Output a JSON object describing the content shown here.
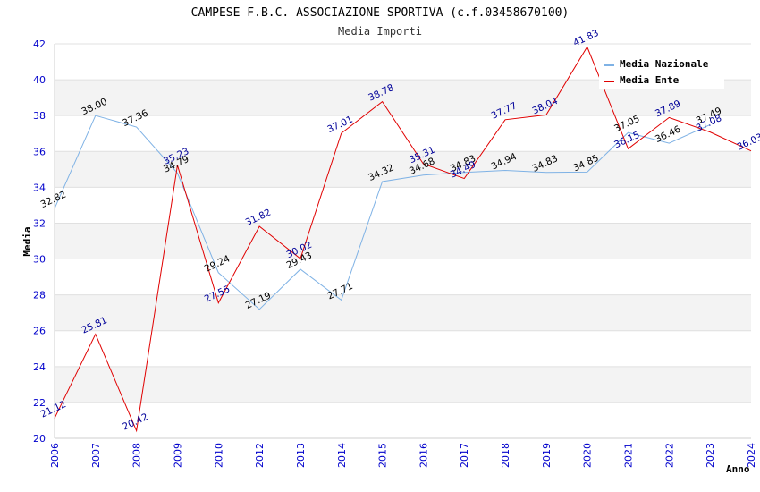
{
  "chart_data": {
    "type": "line",
    "title": "CAMPESE F.B.C. ASSOCIAZIONE SPORTIVA (c.f.03458670100)",
    "subtitle": "Media Importi",
    "xlabel": "Anno",
    "ylabel": "Media",
    "ylim": [
      20,
      42
    ],
    "ytick_step": 2,
    "grid": true,
    "legend_position": "top-right",
    "categories": [
      "2006",
      "2007",
      "2008",
      "2009",
      "2010",
      "2012",
      "2013",
      "2014",
      "2015",
      "2016",
      "2017",
      "2018",
      "2019",
      "2020",
      "2021",
      "2022",
      "2023",
      "2024"
    ],
    "series": [
      {
        "name": "Media Nazionale",
        "color": "#7fb2e5",
        "label_color": "#000000",
        "values": [
          32.82,
          38.0,
          37.36,
          34.79,
          29.24,
          27.19,
          29.43,
          27.71,
          34.32,
          34.68,
          34.83,
          34.94,
          34.83,
          34.85,
          37.05,
          36.46,
          37.49,
          null
        ],
        "labels": [
          "32.82",
          "38.00",
          "37.36",
          "34.79",
          "29.24",
          "27.19",
          "29.43",
          "27.71",
          "34.32",
          "34.68",
          "34.83",
          "34.94",
          "34.83",
          "34.85",
          "37.05",
          "36.46",
          "37.49",
          ""
        ]
      },
      {
        "name": "Media Ente",
        "color": "#e00000",
        "label_color": "#000099",
        "values": [
          21.12,
          25.81,
          20.42,
          35.23,
          27.55,
          31.82,
          30.02,
          37.01,
          38.78,
          35.31,
          34.49,
          37.77,
          38.04,
          41.83,
          36.15,
          37.89,
          37.08,
          36.03
        ],
        "labels": [
          "21.12",
          "25.81",
          "20.42",
          "35.23",
          "27.55",
          "31.82",
          "30.02",
          "37.01",
          "38.78",
          "35.31",
          "34.49",
          "37.77",
          "38.04",
          "41.83",
          "36.15",
          "37.89",
          "37.08",
          "36.03"
        ]
      }
    ]
  }
}
